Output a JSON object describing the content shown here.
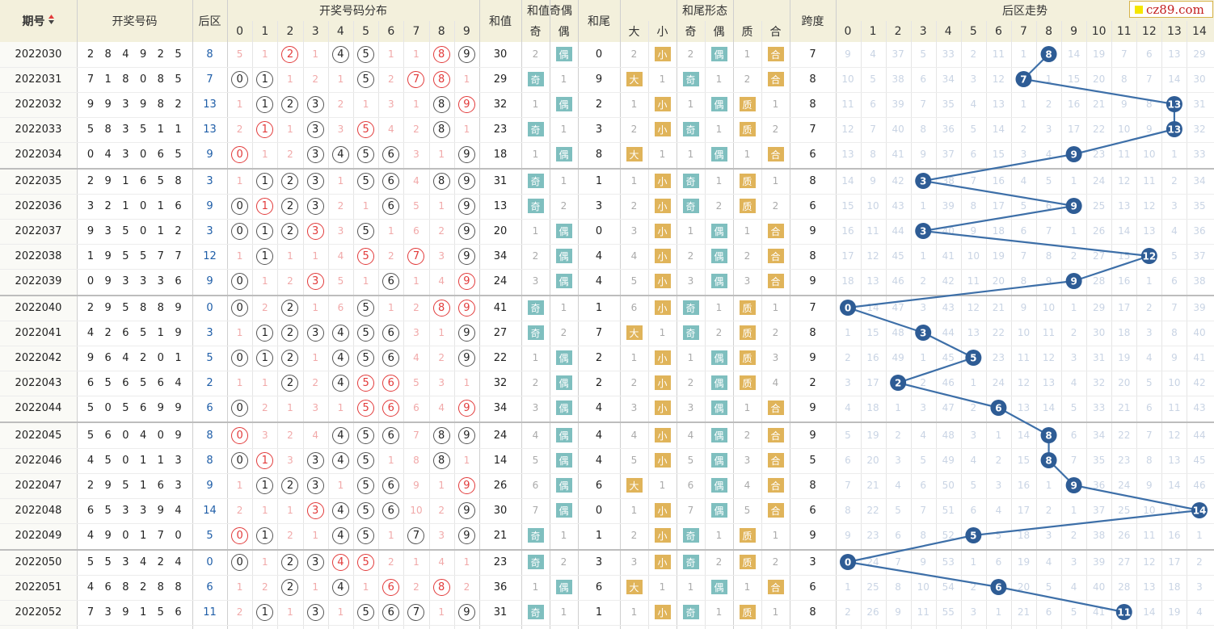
{
  "logo_text": "cz89.com",
  "colors": {
    "ball_red": "#e23a3a",
    "tag_teal": "#7fbfbf",
    "tag_gold": "#e0b45a",
    "trend_line": "#3d6fa8",
    "trend_node": "#2e5c95"
  },
  "headers": {
    "issue": "期号",
    "sort_icon": "sort-arrows-icon",
    "numbers": "开奖号码",
    "back": "后区",
    "distribution": "开奖号码分布",
    "sum": "和值",
    "parity": "和值奇偶",
    "parity_odd": "奇",
    "parity_even": "偶",
    "tail": "和尾",
    "tail_shape": "和尾形态",
    "shape_big": "大",
    "shape_small": "小",
    "shape_odd": "奇",
    "shape_even": "偶",
    "shape_prime": "质",
    "shape_composite": "合",
    "span": "跨度",
    "back_trend": "后区走势"
  },
  "digits_0_9": [
    "0",
    "1",
    "2",
    "3",
    "4",
    "5",
    "6",
    "7",
    "8",
    "9"
  ],
  "digits_0_14": [
    "0",
    "1",
    "2",
    "3",
    "4",
    "5",
    "6",
    "7",
    "8",
    "9",
    "10",
    "11",
    "12",
    "13",
    "14"
  ],
  "rows": [
    {
      "issue": "2022030",
      "nums": "2849258",
      "sum": "30",
      "tail": "0",
      "span": "7",
      "dist": [
        "5",
        "1",
        "●2",
        "1",
        "●4",
        "●5",
        "1",
        "1",
        "●8",
        "●9"
      ],
      "dist_red": [
        2,
        8
      ],
      "par": [
        "2",
        "偶"
      ],
      "shape": [
        "2",
        "小",
        "2",
        "偶",
        "1",
        "合"
      ],
      "trend": [
        "9",
        "4",
        "37",
        "5",
        "33",
        "2",
        "11",
        "1",
        "8",
        "14",
        "19",
        "7",
        "6",
        "13",
        "29"
      ]
    },
    {
      "issue": "2022031",
      "nums": "7180857",
      "sum": "29",
      "tail": "9",
      "span": "8",
      "dist": [
        "●0",
        "●1",
        "1",
        "2",
        "1",
        "●5",
        "2",
        "●7",
        "●8",
        "1"
      ],
      "dist_red": [
        7,
        8
      ],
      "par": [
        "奇",
        "1"
      ],
      "shape": [
        "大",
        "1",
        "奇",
        "1",
        "2",
        "合"
      ],
      "trend": [
        "10",
        "5",
        "38",
        "6",
        "34",
        "3",
        "12",
        "7",
        "1",
        "15",
        "20",
        "8",
        "7",
        "14",
        "30"
      ]
    },
    {
      "issue": "2022032",
      "nums": "99398213",
      "sum": "32",
      "tail": "2",
      "span": "8",
      "dist": [
        "1",
        "●1",
        "●2",
        "●3",
        "2",
        "1",
        "3",
        "1",
        "●8",
        "●9"
      ],
      "dist_red": [
        9
      ],
      "par": [
        "1",
        "偶"
      ],
      "shape": [
        "1",
        "小",
        "1",
        "偶",
        "质",
        "1"
      ],
      "trend": [
        "11",
        "6",
        "39",
        "7",
        "35",
        "4",
        "13",
        "1",
        "2",
        "16",
        "21",
        "9",
        "8",
        "13",
        "31"
      ]
    },
    {
      "issue": "2022033",
      "nums": "58351113",
      "sum": "23",
      "tail": "3",
      "span": "7",
      "dist": [
        "2",
        "●1",
        "1",
        "●3",
        "3",
        "●5",
        "4",
        "2",
        "●8",
        "1"
      ],
      "dist_red": [
        1,
        5
      ],
      "par": [
        "奇",
        "1"
      ],
      "shape": [
        "2",
        "小",
        "奇",
        "1",
        "质",
        "2"
      ],
      "trend": [
        "12",
        "7",
        "40",
        "8",
        "36",
        "5",
        "14",
        "2",
        "3",
        "17",
        "22",
        "10",
        "9",
        "13",
        "32"
      ]
    },
    {
      "issue": "2022034",
      "nums": "0430659",
      "sum": "18",
      "tail": "8",
      "span": "6",
      "dist": [
        "●0",
        "1",
        "2",
        "●3",
        "●4",
        "●5",
        "●6",
        "3",
        "1",
        "●9"
      ],
      "dist_red": [
        0
      ],
      "par": [
        "1",
        "偶"
      ],
      "shape": [
        "大",
        "1",
        "1",
        "偶",
        "1",
        "合"
      ],
      "trend": [
        "13",
        "8",
        "41",
        "9",
        "37",
        "6",
        "15",
        "3",
        "4",
        "9",
        "23",
        "11",
        "10",
        "1",
        "33"
      ]
    },
    {
      "issue": "2022035",
      "nums": "2916583",
      "sum": "31",
      "tail": "1",
      "span": "8",
      "dist": [
        "1",
        "●1",
        "●2",
        "●3",
        "1",
        "●5",
        "●6",
        "4",
        "●8",
        "●9"
      ],
      "dist_red": [],
      "par": [
        "奇",
        "1"
      ],
      "shape": [
        "1",
        "小",
        "奇",
        "1",
        "质",
        "1"
      ],
      "trend": [
        "14",
        "9",
        "42",
        "3",
        "38",
        "7",
        "16",
        "4",
        "5",
        "1",
        "24",
        "12",
        "11",
        "2",
        "34"
      ]
    },
    {
      "issue": "2022036",
      "nums": "3210169",
      "sum": "13",
      "tail": "3",
      "span": "6",
      "dist": [
        "●0",
        "●1",
        "●2",
        "●3",
        "2",
        "1",
        "●6",
        "5",
        "1",
        "●9"
      ],
      "dist_red": [
        1
      ],
      "par": [
        "奇",
        "2"
      ],
      "shape": [
        "2",
        "小",
        "奇",
        "2",
        "质",
        "2"
      ],
      "trend": [
        "15",
        "10",
        "43",
        "1",
        "39",
        "8",
        "17",
        "5",
        "6",
        "9",
        "25",
        "13",
        "12",
        "3",
        "35"
      ]
    },
    {
      "issue": "2022037",
      "nums": "9350123",
      "sum": "20",
      "tail": "0",
      "span": "9",
      "dist": [
        "●0",
        "●1",
        "●2",
        "●3",
        "3",
        "●5",
        "1",
        "6",
        "2",
        "●9"
      ],
      "dist_red": [
        3
      ],
      "par": [
        "1",
        "偶"
      ],
      "shape": [
        "3",
        "小",
        "1",
        "偶",
        "1",
        "合"
      ],
      "trend": [
        "16",
        "11",
        "44",
        "3",
        "40",
        "9",
        "18",
        "6",
        "7",
        "1",
        "26",
        "14",
        "13",
        "4",
        "36"
      ]
    },
    {
      "issue": "2022038",
      "nums": "19557712",
      "sum": "34",
      "tail": "4",
      "span": "8",
      "dist": [
        "1",
        "●1",
        "1",
        "1",
        "4",
        "●5",
        "2",
        "●7",
        "3",
        "●9"
      ],
      "dist_red": [
        5,
        7
      ],
      "par": [
        "2",
        "偶"
      ],
      "shape": [
        "4",
        "小",
        "2",
        "偶",
        "2",
        "合"
      ],
      "trend": [
        "17",
        "12",
        "45",
        "1",
        "41",
        "10",
        "19",
        "7",
        "8",
        "2",
        "27",
        "15",
        "12",
        "5",
        "37"
      ]
    },
    {
      "issue": "2022039",
      "nums": "0933369",
      "sum": "24",
      "tail": "4",
      "span": "9",
      "dist": [
        "●0",
        "1",
        "2",
        "●3",
        "5",
        "1",
        "●6",
        "1",
        "4",
        "●9"
      ],
      "dist_red": [
        3,
        9
      ],
      "par": [
        "3",
        "偶"
      ],
      "shape": [
        "5",
        "小",
        "3",
        "偶",
        "3",
        "合"
      ],
      "trend": [
        "18",
        "13",
        "46",
        "2",
        "42",
        "11",
        "20",
        "8",
        "9",
        "9",
        "28",
        "16",
        "1",
        "6",
        "38"
      ]
    },
    {
      "issue": "2022040",
      "nums": "2958890",
      "sum": "41",
      "tail": "1",
      "span": "7",
      "dist": [
        "●0",
        "2",
        "●2",
        "1",
        "6",
        "●5",
        "1",
        "2",
        "●8",
        "●9"
      ],
      "dist_red": [
        8,
        9
      ],
      "par": [
        "奇",
        "1"
      ],
      "shape": [
        "6",
        "小",
        "奇",
        "1",
        "质",
        "1"
      ],
      "trend": [
        "0",
        "14",
        "47",
        "3",
        "43",
        "12",
        "21",
        "9",
        "10",
        "1",
        "29",
        "17",
        "2",
        "7",
        "39"
      ]
    },
    {
      "issue": "2022041",
      "nums": "4265193",
      "sum": "27",
      "tail": "7",
      "span": "8",
      "dist": [
        "1",
        "●1",
        "●2",
        "●3",
        "●4",
        "●5",
        "●6",
        "3",
        "1",
        "●9"
      ],
      "dist_red": [],
      "par": [
        "奇",
        "2"
      ],
      "shape": [
        "大",
        "1",
        "奇",
        "2",
        "质",
        "2"
      ],
      "trend": [
        "1",
        "15",
        "48",
        "3",
        "44",
        "13",
        "22",
        "10",
        "11",
        "2",
        "30",
        "18",
        "3",
        "8",
        "40"
      ]
    },
    {
      "issue": "2022042",
      "nums": "9642015",
      "sum": "22",
      "tail": "2",
      "span": "9",
      "dist": [
        "●0",
        "●1",
        "●2",
        "1",
        "●4",
        "●5",
        "●6",
        "4",
        "2",
        "●9"
      ],
      "dist_red": [],
      "par": [
        "1",
        "偶"
      ],
      "shape": [
        "1",
        "小",
        "1",
        "偶",
        "质",
        "3"
      ],
      "trend": [
        "2",
        "16",
        "49",
        "1",
        "45",
        "5",
        "23",
        "11",
        "12",
        "3",
        "31",
        "19",
        "4",
        "9",
        "41"
      ]
    },
    {
      "issue": "2022043",
      "nums": "6565642",
      "sum": "32",
      "tail": "2",
      "span": "2",
      "dist": [
        "1",
        "1",
        "●2",
        "2",
        "●4",
        "●5",
        "●6",
        "5",
        "3",
        "1"
      ],
      "dist_red": [
        5,
        6
      ],
      "par": [
        "2",
        "偶"
      ],
      "shape": [
        "2",
        "小",
        "2",
        "偶",
        "质",
        "4"
      ],
      "trend": [
        "3",
        "17",
        "2",
        "2",
        "46",
        "1",
        "24",
        "12",
        "13",
        "4",
        "32",
        "20",
        "5",
        "10",
        "42"
      ]
    },
    {
      "issue": "2022044",
      "nums": "5056996",
      "sum": "34",
      "tail": "4",
      "span": "9",
      "dist": [
        "●0",
        "2",
        "1",
        "3",
        "1",
        "●5",
        "●6",
        "6",
        "4",
        "●9"
      ],
      "dist_red": [
        5,
        6,
        9
      ],
      "par": [
        "3",
        "偶"
      ],
      "shape": [
        "3",
        "小",
        "3",
        "偶",
        "1",
        "合"
      ],
      "trend": [
        "4",
        "18",
        "1",
        "3",
        "47",
        "2",
        "6",
        "13",
        "14",
        "5",
        "33",
        "21",
        "6",
        "11",
        "43"
      ]
    },
    {
      "issue": "2022045",
      "nums": "5604098",
      "sum": "24",
      "tail": "4",
      "span": "9",
      "dist": [
        "●0",
        "3",
        "2",
        "4",
        "●4",
        "●5",
        "●6",
        "7",
        "●8",
        "●9"
      ],
      "dist_red": [
        0
      ],
      "par": [
        "4",
        "偶"
      ],
      "shape": [
        "4",
        "小",
        "4",
        "偶",
        "2",
        "合"
      ],
      "trend": [
        "5",
        "19",
        "2",
        "4",
        "48",
        "3",
        "1",
        "14",
        "8",
        "6",
        "34",
        "22",
        "7",
        "12",
        "44"
      ]
    },
    {
      "issue": "2022046",
      "nums": "4501138",
      "sum": "14",
      "tail": "4",
      "span": "5",
      "dist": [
        "●0",
        "●1",
        "3",
        "●3",
        "●4",
        "●5",
        "1",
        "8",
        "●8",
        "1"
      ],
      "dist_red": [
        1
      ],
      "par": [
        "5",
        "偶"
      ],
      "shape": [
        "5",
        "小",
        "5",
        "偶",
        "3",
        "合"
      ],
      "trend": [
        "6",
        "20",
        "3",
        "5",
        "49",
        "4",
        "2",
        "15",
        "8",
        "7",
        "35",
        "23",
        "8",
        "13",
        "45"
      ]
    },
    {
      "issue": "2022047",
      "nums": "2951639",
      "sum": "26",
      "tail": "6",
      "span": "8",
      "dist": [
        "1",
        "●1",
        "●2",
        "●3",
        "1",
        "●5",
        "●6",
        "9",
        "1",
        "●9"
      ],
      "dist_red": [
        9
      ],
      "par": [
        "6",
        "偶"
      ],
      "shape": [
        "大",
        "1",
        "6",
        "偶",
        "4",
        "合"
      ],
      "trend": [
        "7",
        "21",
        "4",
        "6",
        "50",
        "5",
        "3",
        "16",
        "1",
        "9",
        "36",
        "24",
        "9",
        "14",
        "46"
      ]
    },
    {
      "issue": "2022048",
      "nums": "65339414",
      "sum": "30",
      "tail": "0",
      "span": "6",
      "dist": [
        "2",
        "1",
        "1",
        "●3",
        "●4",
        "●5",
        "●6",
        "10",
        "2",
        "●9"
      ],
      "dist_red": [
        3
      ],
      "par": [
        "7",
        "偶"
      ],
      "shape": [
        "1",
        "小",
        "7",
        "偶",
        "5",
        "合"
      ],
      "trend": [
        "8",
        "22",
        "5",
        "7",
        "51",
        "6",
        "4",
        "17",
        "2",
        "1",
        "37",
        "25",
        "10",
        "15",
        "14"
      ]
    },
    {
      "issue": "2022049",
      "nums": "4901705",
      "sum": "21",
      "tail": "1",
      "span": "9",
      "dist": [
        "●0",
        "●1",
        "2",
        "1",
        "●4",
        "●5",
        "1",
        "●7",
        "3",
        "●9"
      ],
      "dist_red": [
        0
      ],
      "par": [
        "奇",
        "1"
      ],
      "shape": [
        "2",
        "小",
        "奇",
        "1",
        "质",
        "1"
      ],
      "trend": [
        "9",
        "23",
        "6",
        "8",
        "52",
        "5",
        "5",
        "18",
        "3",
        "2",
        "38",
        "26",
        "11",
        "16",
        "1"
      ]
    },
    {
      "issue": "2022050",
      "nums": "5534240",
      "sum": "23",
      "tail": "3",
      "span": "3",
      "dist": [
        "●0",
        "1",
        "●2",
        "●3",
        "●4",
        "●5",
        "2",
        "1",
        "4",
        "1"
      ],
      "dist_red": [
        4,
        5
      ],
      "par": [
        "奇",
        "2"
      ],
      "shape": [
        "3",
        "小",
        "奇",
        "2",
        "质",
        "2"
      ],
      "trend": [
        "0",
        "24",
        "7",
        "9",
        "53",
        "1",
        "6",
        "19",
        "4",
        "3",
        "39",
        "27",
        "12",
        "17",
        "2"
      ]
    },
    {
      "issue": "2022051",
      "nums": "4682886",
      "sum": "36",
      "tail": "6",
      "span": "6",
      "dist": [
        "1",
        "2",
        "●2",
        "1",
        "●4",
        "1",
        "●6",
        "2",
        "●8",
        "2"
      ],
      "dist_red": [
        6,
        8
      ],
      "par": [
        "1",
        "偶"
      ],
      "shape": [
        "大",
        "1",
        "1",
        "偶",
        "1",
        "合"
      ],
      "trend": [
        "1",
        "25",
        "8",
        "10",
        "54",
        "2",
        "6",
        "20",
        "5",
        "4",
        "40",
        "28",
        "13",
        "18",
        "3"
      ]
    },
    {
      "issue": "2022052",
      "nums": "73915611",
      "sum": "31",
      "tail": "1",
      "span": "8",
      "dist": [
        "2",
        "●1",
        "1",
        "●3",
        "1",
        "●5",
        "●6",
        "●7",
        "1",
        "●9"
      ],
      "dist_red": [],
      "par": [
        "奇",
        "1"
      ],
      "shape": [
        "1",
        "小",
        "奇",
        "1",
        "质",
        "1"
      ],
      "trend": [
        "2",
        "26",
        "9",
        "11",
        "55",
        "3",
        "1",
        "21",
        "6",
        "5",
        "41",
        "11",
        "14",
        "19",
        "4"
      ]
    }
  ],
  "chart_data": {
    "type": "line",
    "title": "后区走势",
    "xlabel": "",
    "ylabel": "",
    "categories": [
      "2022030",
      "2022031",
      "2022032",
      "2022033",
      "2022034",
      "2022035",
      "2022036",
      "2022037",
      "2022038",
      "2022039",
      "2022040",
      "2022041",
      "2022042",
      "2022043",
      "2022044",
      "2022045",
      "2022046",
      "2022047",
      "2022048",
      "2022049",
      "2022050",
      "2022051",
      "2022052"
    ],
    "series": [
      {
        "values": [
          8,
          7,
          13,
          13,
          9,
          3,
          9,
          3,
          12,
          9,
          0,
          3,
          5,
          2,
          6,
          8,
          8,
          9,
          14,
          5,
          0,
          6,
          11
        ]
      }
    ],
    "ylim": [
      0,
      14
    ]
  }
}
